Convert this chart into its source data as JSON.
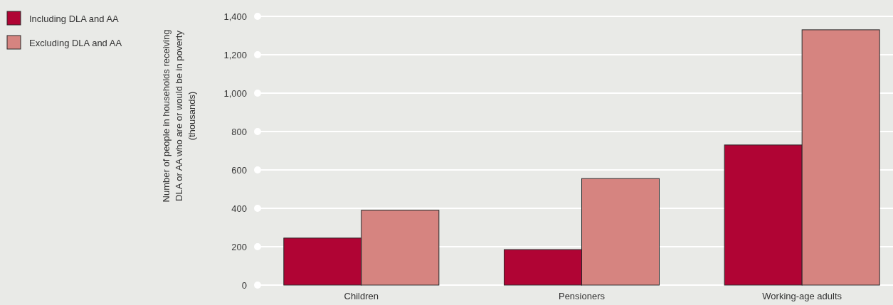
{
  "chart_data": {
    "type": "bar",
    "ylabel": "Number of people in households receiving DLA or AA who are or would be in poverty (thousands)",
    "categories": [
      "Children",
      "Pensioners",
      "Working-age adults"
    ],
    "series": [
      {
        "name": "Including DLA and AA",
        "color": "#b00434",
        "values": [
          245,
          185,
          730
        ]
      },
      {
        "name": "Excluding DLA and AA",
        "color": "#d68480",
        "values": [
          390,
          555,
          1330
        ]
      }
    ],
    "ylim": [
      0,
      1400
    ],
    "yticks": [
      0,
      {
        "value": 200,
        "label": "200"
      },
      {
        "value": 400,
        "label": "400"
      },
      {
        "value": 600,
        "label": "600"
      },
      {
        "value": 800,
        "label": "800"
      },
      {
        "value": 1000,
        "label": "1,000"
      },
      {
        "value": 1200,
        "label": "1,200"
      },
      {
        "value": 1400,
        "label": "1,400"
      }
    ],
    "grid": "y",
    "legend": "top left"
  }
}
